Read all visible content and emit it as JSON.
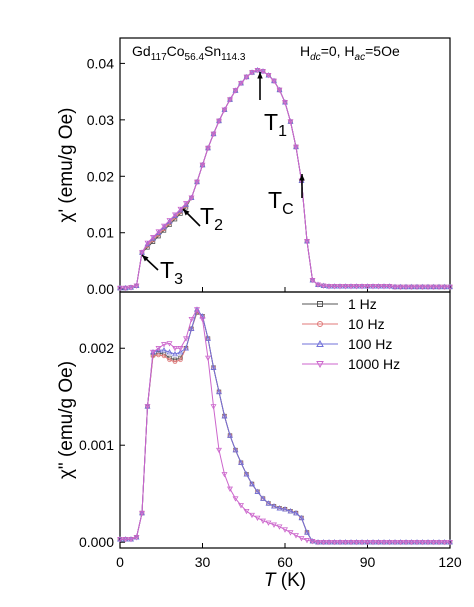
{
  "chart_data": [
    {
      "type": "line",
      "sample_label": [
        "Gd",
        "117",
        "Co",
        "56.4",
        "Sn",
        "114.3"
      ],
      "field_label": [
        "H",
        "dc",
        "=0, H",
        "ac",
        "=5Oe"
      ],
      "y_label": "χ' (emu/g Oe)",
      "annotations": [
        {
          "text": "T",
          "sub": "1"
        },
        {
          "text": "T",
          "sub": "2"
        },
        {
          "text": "T",
          "sub": "3"
        },
        {
          "text": "T",
          "sub": "C"
        }
      ],
      "xlim": [
        0,
        120
      ],
      "xticks": [
        0,
        30,
        60,
        90,
        120
      ],
      "ylim": [
        -0.0005,
        0.0445
      ],
      "yticks": [
        {
          "value": 0,
          "label": "0.00"
        },
        {
          "value": 0.01,
          "label": "0.01"
        },
        {
          "value": 0.02,
          "label": "0.02"
        },
        {
          "value": 0.03,
          "label": "0.03"
        },
        {
          "value": 0.04,
          "label": "0.04"
        }
      ],
      "x": [
        0,
        2,
        4,
        6,
        8,
        10,
        12,
        14,
        16,
        18,
        20,
        22,
        24,
        26,
        28,
        30,
        32,
        34,
        36,
        38,
        40,
        42,
        44,
        46,
        48,
        50,
        52,
        54,
        56,
        58,
        60,
        62,
        64,
        66,
        68,
        70,
        72,
        74,
        76,
        78,
        80,
        82,
        84,
        86,
        88,
        90,
        92,
        94,
        96,
        98,
        100,
        102,
        104,
        106,
        108,
        110,
        112,
        114,
        116,
        118,
        120
      ],
      "series": [
        {
          "name": "1 Hz",
          "color": "#555555",
          "marker": "square",
          "values": [
            0.0002,
            0.0002,
            0.0003,
            0.0006,
            0.0065,
            0.0074,
            0.0084,
            0.0094,
            0.0104,
            0.0114,
            0.0124,
            0.0134,
            0.0145,
            0.0162,
            0.019,
            0.022,
            0.025,
            0.0275,
            0.0298,
            0.0318,
            0.0336,
            0.0352,
            0.0365,
            0.0376,
            0.0384,
            0.0388,
            0.0386,
            0.0379,
            0.0369,
            0.0353,
            0.0331,
            0.0297,
            0.0252,
            0.0192,
            0.0085,
            0.0016,
            0.0008,
            0.0006,
            0.0005,
            0.0005,
            0.0005,
            0.0005,
            0.0005,
            0.0005,
            0.0005,
            0.0005,
            0.0005,
            0.0005,
            0.0005,
            0.0005,
            0.0004,
            0.0004,
            0.0004,
            0.0004,
            0.0004,
            0.0004,
            0.0004,
            0.0004,
            0.0004,
            0.0004,
            0.0004
          ]
        },
        {
          "name": "10 Hz",
          "color": "#e07878",
          "marker": "circle",
          "values": [
            0.0002,
            0.0002,
            0.0003,
            0.0006,
            0.0065,
            0.0077,
            0.0087,
            0.0097,
            0.0107,
            0.0117,
            0.0127,
            0.0137,
            0.0148,
            0.0162,
            0.019,
            0.022,
            0.025,
            0.0275,
            0.0298,
            0.0318,
            0.0336,
            0.0352,
            0.0365,
            0.0376,
            0.0384,
            0.0388,
            0.0386,
            0.0379,
            0.0369,
            0.0353,
            0.0331,
            0.0297,
            0.0252,
            0.0192,
            0.0085,
            0.0016,
            0.0008,
            0.0006,
            0.0005,
            0.0005,
            0.0005,
            0.0005,
            0.0005,
            0.0005,
            0.0005,
            0.0005,
            0.0005,
            0.0005,
            0.0005,
            0.0005,
            0.0004,
            0.0004,
            0.0004,
            0.0004,
            0.0004,
            0.0004,
            0.0004,
            0.0004,
            0.0004,
            0.0004,
            0.0004
          ]
        },
        {
          "name": "100 Hz",
          "color": "#7070d8",
          "marker": "triangle-up",
          "values": [
            0.0002,
            0.0002,
            0.0003,
            0.0006,
            0.0065,
            0.008,
            0.009,
            0.01,
            0.011,
            0.012,
            0.013,
            0.014,
            0.015,
            0.0162,
            0.019,
            0.022,
            0.025,
            0.0275,
            0.0298,
            0.0318,
            0.0336,
            0.0352,
            0.0365,
            0.0376,
            0.0384,
            0.0388,
            0.0386,
            0.0379,
            0.0369,
            0.0353,
            0.0331,
            0.0297,
            0.0252,
            0.0192,
            0.0085,
            0.0016,
            0.0008,
            0.0006,
            0.0005,
            0.0005,
            0.0005,
            0.0005,
            0.0005,
            0.0005,
            0.0005,
            0.0005,
            0.0005,
            0.0005,
            0.0005,
            0.0005,
            0.0004,
            0.0004,
            0.0004,
            0.0004,
            0.0004,
            0.0004,
            0.0004,
            0.0004,
            0.0004,
            0.0004,
            0.0004
          ]
        },
        {
          "name": "1000 Hz",
          "color": "#cc66cc",
          "marker": "triangle-down",
          "values": [
            0.0002,
            0.0002,
            0.0003,
            0.0006,
            0.0065,
            0.0082,
            0.0092,
            0.0102,
            0.0112,
            0.0122,
            0.0132,
            0.0142,
            0.0152,
            0.0162,
            0.019,
            0.022,
            0.025,
            0.0275,
            0.0298,
            0.0318,
            0.0336,
            0.0352,
            0.0365,
            0.0376,
            0.0384,
            0.0388,
            0.0386,
            0.0379,
            0.0369,
            0.0353,
            0.0331,
            0.0297,
            0.0252,
            0.0192,
            0.0085,
            0.0016,
            0.0008,
            0.0006,
            0.0005,
            0.0005,
            0.0005,
            0.0005,
            0.0005,
            0.0005,
            0.0005,
            0.0005,
            0.0005,
            0.0005,
            0.0005,
            0.0005,
            0.0004,
            0.0004,
            0.0004,
            0.0004,
            0.0004,
            0.0004,
            0.0004,
            0.0004,
            0.0004,
            0.0004,
            0.0004
          ]
        }
      ]
    },
    {
      "type": "line",
      "y_label": "χ\" (emu/g Oe)",
      "x_label": [
        "T",
        " (K)"
      ],
      "legend": "upper right",
      "xlim": [
        0,
        120
      ],
      "xticks": [
        0,
        30,
        60,
        90,
        120
      ],
      "ylim": [
        -6e-05,
        0.00258
      ],
      "yticks": [
        {
          "value": 0,
          "label": "0.000"
        },
        {
          "value": 0.001,
          "label": "0.001"
        },
        {
          "value": 0.002,
          "label": "0.002"
        }
      ],
      "x": [
        0,
        2,
        4,
        6,
        8,
        10,
        12,
        14,
        16,
        18,
        20,
        22,
        24,
        26,
        28,
        30,
        32,
        34,
        36,
        38,
        40,
        42,
        44,
        46,
        48,
        50,
        52,
        54,
        56,
        58,
        60,
        62,
        64,
        66,
        68,
        70,
        72,
        74,
        76,
        78,
        80,
        82,
        84,
        86,
        88,
        90,
        92,
        94,
        96,
        98,
        100,
        102,
        104,
        106,
        108,
        110,
        112,
        114,
        116,
        118,
        120
      ],
      "series": [
        {
          "name": "1 Hz",
          "color": "#555555",
          "marker": "square",
          "values": [
            3e-05,
            3e-05,
            3e-05,
            5e-05,
            0.0003,
            0.0014,
            0.00193,
            0.00195,
            0.00194,
            0.0019,
            0.00188,
            0.0019,
            0.002,
            0.0022,
            0.00237,
            0.00233,
            0.0021,
            0.0018,
            0.00155,
            0.0013,
            0.0011,
            0.00095,
            0.00082,
            0.0007,
            0.0006,
            0.00052,
            0.00045,
            0.0004,
            0.00037,
            0.00035,
            0.00034,
            0.00032,
            0.0003,
            0.00025,
            0.0001,
            1e-05,
            0,
            0,
            0,
            0,
            0,
            0,
            0,
            0,
            0,
            0,
            0,
            0,
            0,
            0,
            0,
            0,
            0,
            0,
            0,
            0,
            0,
            0,
            0,
            0,
            0
          ]
        },
        {
          "name": "10 Hz",
          "color": "#e07878",
          "marker": "circle",
          "values": [
            3e-05,
            3e-05,
            3e-05,
            5e-05,
            0.0003,
            0.0014,
            0.00192,
            0.00193,
            0.00192,
            0.00188,
            0.00186,
            0.00188,
            0.002,
            0.0022,
            0.00238,
            0.00233,
            0.0021,
            0.0018,
            0.00155,
            0.0013,
            0.0011,
            0.00095,
            0.00082,
            0.0007,
            0.0006,
            0.00052,
            0.00045,
            0.0004,
            0.00037,
            0.00035,
            0.00034,
            0.00032,
            0.0003,
            0.00025,
            0.0001,
            1e-05,
            0,
            0,
            0,
            0,
            0,
            0,
            0,
            0,
            0,
            0,
            0,
            0,
            0,
            0,
            0,
            0,
            0,
            0,
            0,
            0,
            0,
            0,
            0,
            0,
            0
          ]
        },
        {
          "name": "100 Hz",
          "color": "#7070d8",
          "marker": "triangle-up",
          "values": [
            3e-05,
            3e-05,
            3e-05,
            5e-05,
            0.0003,
            0.0014,
            0.00196,
            0.00198,
            0.00198,
            0.00196,
            0.00194,
            0.00196,
            0.002,
            0.0022,
            0.0024,
            0.00233,
            0.0021,
            0.0018,
            0.00155,
            0.0013,
            0.0011,
            0.00095,
            0.00082,
            0.0007,
            0.0006,
            0.00052,
            0.00045,
            0.0004,
            0.00037,
            0.00035,
            0.00034,
            0.00032,
            0.0003,
            0.00025,
            0.0001,
            1e-05,
            0,
            0,
            0,
            0,
            0,
            0,
            0,
            0,
            0,
            0,
            0,
            0,
            0,
            0,
            0,
            0,
            0,
            0,
            0,
            0,
            0,
            0,
            0,
            0,
            0
          ]
        },
        {
          "name": "1000 Hz",
          "color": "#cc66cc",
          "marker": "triangle-down",
          "values": [
            3e-05,
            3e-05,
            3e-05,
            5e-05,
            0.0003,
            0.0014,
            0.00196,
            0.002,
            0.00204,
            0.00205,
            0.002,
            0.002,
            0.0021,
            0.0023,
            0.0024,
            0.0023,
            0.0019,
            0.0014,
            0.00095,
            0.0007,
            0.00055,
            0.00045,
            0.00038,
            0.00032,
            0.00028,
            0.00025,
            0.00022,
            0.0002,
            0.00018,
            0.00016,
            0.00013,
            0.0001,
            7e-05,
            4e-05,
            2e-05,
            1e-05,
            0,
            0,
            0,
            0,
            0,
            0,
            0,
            0,
            0,
            0,
            0,
            0,
            0,
            0,
            0,
            0,
            0,
            0,
            0,
            0,
            0,
            0,
            0,
            0,
            0
          ]
        }
      ]
    }
  ]
}
